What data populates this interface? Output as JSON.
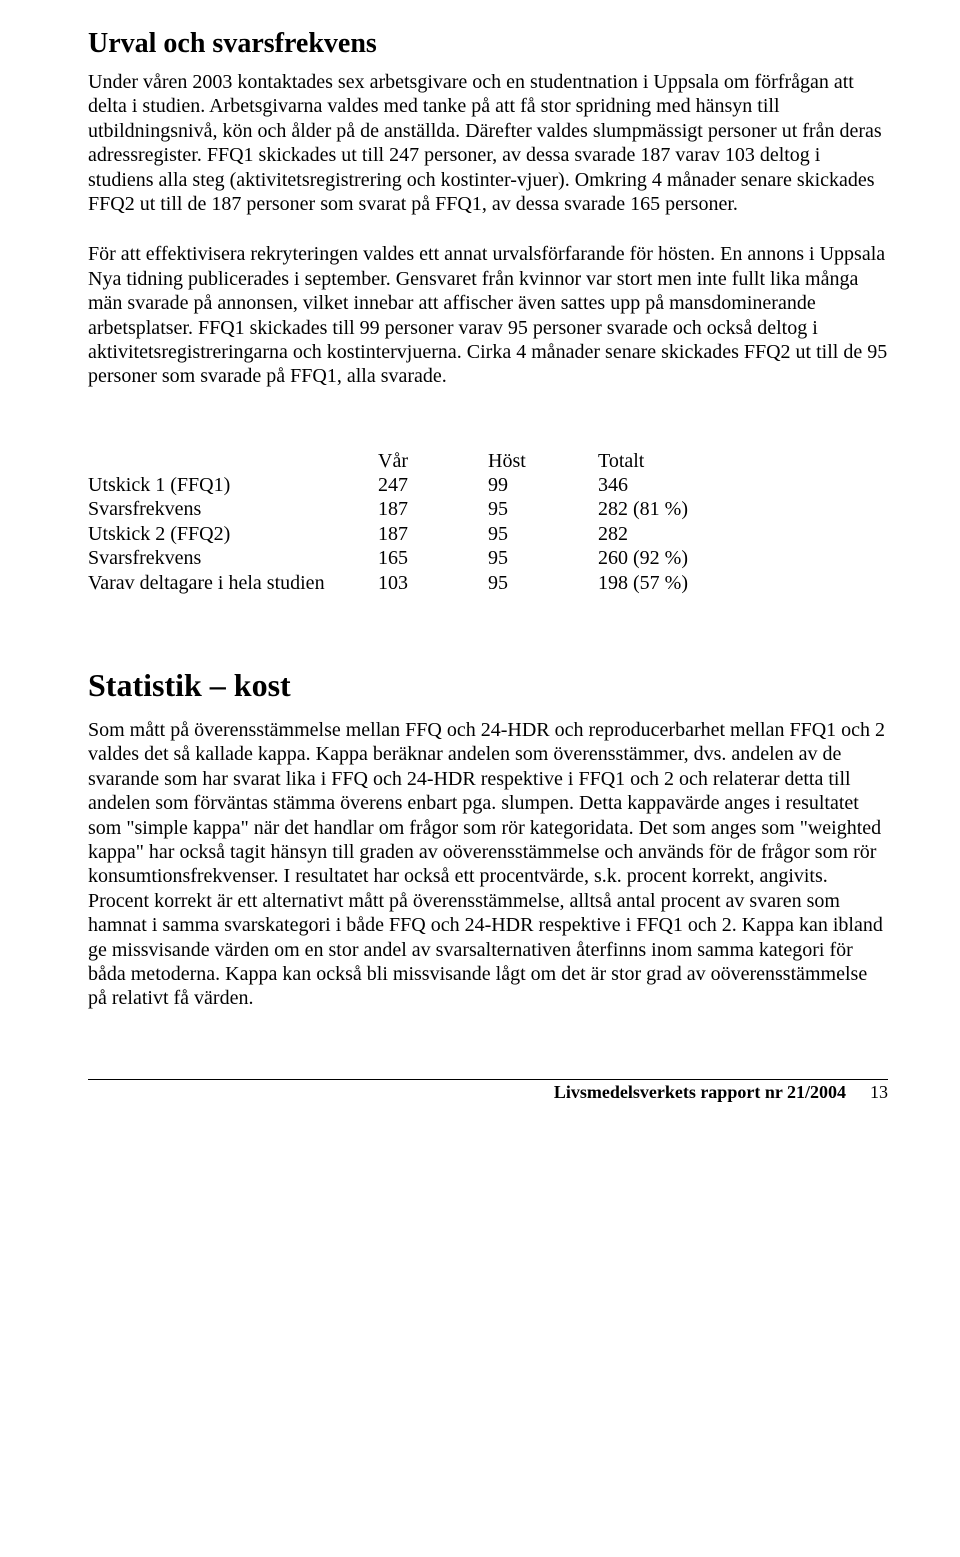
{
  "section1": {
    "heading": "Urval och svarsfrekvens",
    "para1": "Under våren 2003 kontaktades sex arbetsgivare och en studentnation i Uppsala om förfrågan att delta i studien. Arbetsgivarna valdes med tanke på att få stor spridning med hänsyn till utbildningsnivå, kön och ålder på de anställda. Därefter valdes slumpmässigt personer ut från deras adressregister. FFQ1 skickades ut till 247 personer, av dessa svarade 187 varav 103 deltog i studiens alla steg (aktivitetsregistrering och kostinter-vjuer). Omkring 4 månader senare skickades FFQ2 ut till de 187 personer som svarat på FFQ1, av dessa svarade 165 personer.",
    "para2": "För att effektivisera rekryteringen valdes ett annat urvalsförfarande för hösten. En annons i Uppsala Nya tidning publicerades i september. Gensvaret från kvinnor var stort men inte fullt lika många män svarade på annonsen, vilket innebar att affischer även sattes upp på mansdominerande arbetsplatser. FFQ1 skickades till 99 personer varav 95 personer svarade och också deltog i aktivitetsregistreringarna och kostintervjuerna. Cirka 4 månader senare skickades FFQ2 ut till de 95 personer som svarade på FFQ1, alla svarade."
  },
  "table": {
    "headers": {
      "var": "Vår",
      "host": "Höst",
      "total": "Totalt"
    },
    "rows": [
      {
        "label": "Utskick 1 (FFQ1)",
        "var": "247",
        "host": "99",
        "total": "346"
      },
      {
        "label": "Svarsfrekvens",
        "var": "187",
        "host": "95",
        "total": "282 (81 %)"
      },
      {
        "label": "Utskick 2 (FFQ2)",
        "var": "187",
        "host": "95",
        "total": "282"
      },
      {
        "label": "Svarsfrekvens",
        "var": "165",
        "host": "95",
        "total": "260 (92 %)"
      },
      {
        "label": "Varav deltagare i hela studien",
        "var": "103",
        "host": "95",
        "total": "198 (57 %)"
      }
    ]
  },
  "section2": {
    "heading": "Statistik – kost",
    "para1": "Som mått på överensstämmelse mellan FFQ och 24-HDR och reproducerbarhet mellan FFQ1 och 2 valdes det så kallade kappa. Kappa beräknar andelen som överensstämmer, dvs. andelen av de svarande som har svarat lika i FFQ och 24-HDR respektive i FFQ1 och 2 och relaterar detta till andelen som förväntas stämma överens enbart pga. slumpen. Detta kappavärde anges i resultatet som \"simple kappa\" när det handlar om frågor som rör kategoridata. Det som anges som \"weighted kappa\" har också tagit hänsyn till graden av oöverensstämmelse och används för de frågor som rör konsumtionsfrekvenser. I resultatet har också ett procentvärde, s.k. procent korrekt, angivits. Procent korrekt är ett alternativt mått på överensstämmelse, alltså antal procent av svaren som hamnat i samma svarskategori i både FFQ och 24-HDR respektive i FFQ1 och 2. Kappa kan ibland ge missvisande värden om en stor andel av svarsalternativen återfinns inom samma kategori för båda metoderna. Kappa kan också bli missvisande lågt om det är stor grad av oöverensstämmelse på relativt få värden."
  },
  "footer": {
    "title": "Livsmedelsverkets rapport nr 21/2004",
    "page": "13"
  }
}
